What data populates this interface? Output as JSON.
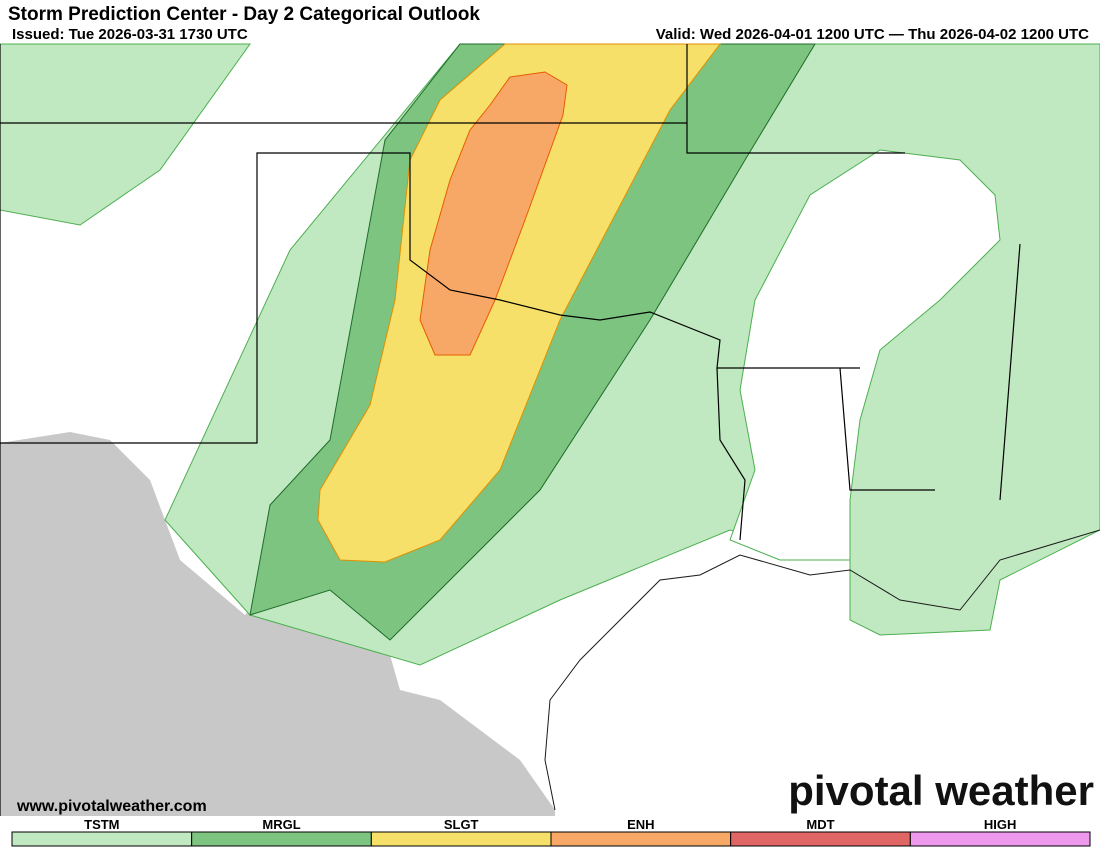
{
  "header": {
    "title": "Storm Prediction Center - Day 2 Categorical Outlook",
    "issued": "Issued: Tue 2026-03-31 1730 UTC",
    "valid": "Valid: Wed 2026-04-01 1200 UTC — Thu 2026-04-02 1200 UTC"
  },
  "footer": {
    "website": "www.pivotalweather.com",
    "brand": "pivotal weather"
  },
  "legend": [
    {
      "label": "TSTM",
      "color": "#c1e9c1"
    },
    {
      "label": "MRGL",
      "color": "#7cc47f"
    },
    {
      "label": "SLGT",
      "color": "#f6e06a"
    },
    {
      "label": "ENH",
      "color": "#f8a866"
    },
    {
      "label": "MDT",
      "color": "#e06666"
    },
    {
      "label": "HIGH",
      "color": "#ee99ee"
    }
  ]
}
